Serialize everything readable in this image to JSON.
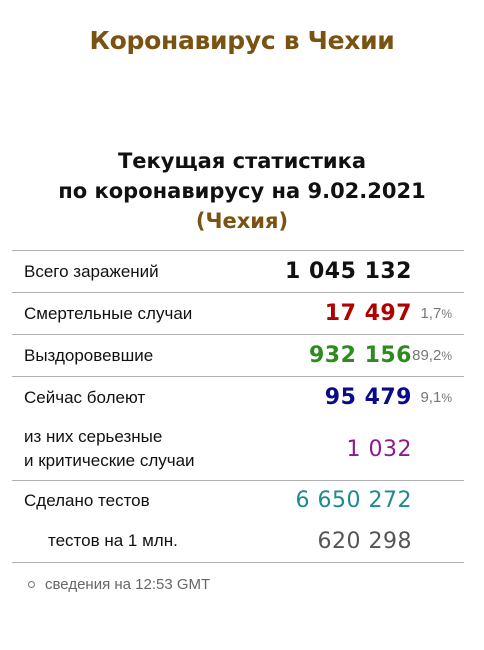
{
  "page": {
    "title": "Коронавирус в Чехии"
  },
  "heading": {
    "line1": "Текущая статистика",
    "line2": "по коронавирусу на 9.02.2021",
    "country": "(Чехия)"
  },
  "stats": {
    "total": {
      "label": "Всего заражений",
      "value": "1 045 132",
      "color": "#111111"
    },
    "deaths": {
      "label": "Смертельные случаи",
      "value": "17 497",
      "percent": "1,7",
      "percent_sign": "%",
      "color": "#b00000"
    },
    "recovered": {
      "label": "Выздоровевшие",
      "value": "932 156",
      "percent": "89,2",
      "percent_sign": "%",
      "color": "#2e8b1e"
    },
    "active": {
      "label": "Сейчас болеют",
      "value": "95 479",
      "percent": "9,1",
      "percent_sign": "%",
      "color": "#0a0a8a"
    },
    "serious": {
      "label_line1": "из них серьезные",
      "label_line2": "и критические случаи",
      "value": "1 032",
      "color": "#8b1a8b"
    },
    "tests": {
      "label": "Сделано тестов",
      "value": "6 650 272",
      "color": "#1f8a8a"
    },
    "tests_per_million": {
      "label": "тестов на 1 млн.",
      "value": "620 298",
      "color": "#555555"
    }
  },
  "footnote": {
    "text": "сведения на 12:53 GMT"
  }
}
